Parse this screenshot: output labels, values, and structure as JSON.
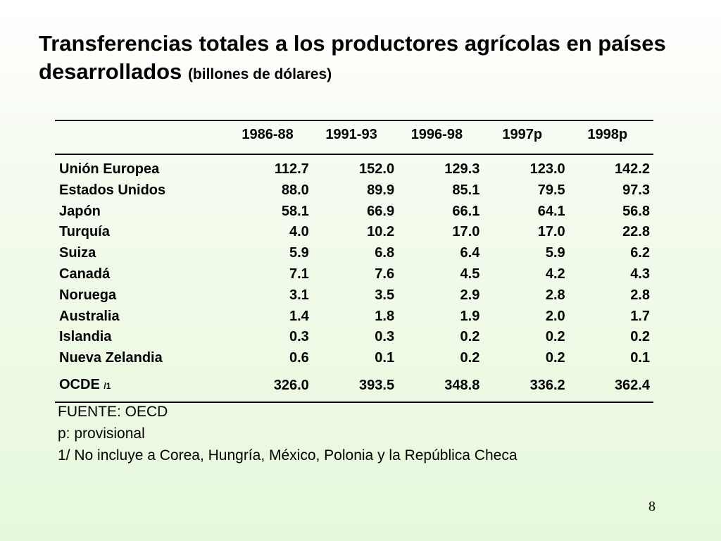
{
  "title": {
    "main": "Transferencias totales a los productores agrícolas en países desarrollados",
    "unit": "(billones de dólares)"
  },
  "table": {
    "headers": [
      "1986-88",
      "1991-93",
      "1996-98",
      "1997p",
      "1998p"
    ],
    "rows": [
      {
        "label": "Unión Europea",
        "values": [
          "112.7",
          "152.0",
          "129.3",
          "123.0",
          "142.2"
        ]
      },
      {
        "label": "Estados Unidos",
        "values": [
          "88.0",
          "89.9",
          "85.1",
          "79.5",
          "97.3"
        ]
      },
      {
        "label": "Japón",
        "values": [
          "58.1",
          "66.9",
          "66.1",
          "64.1",
          "56.8"
        ]
      },
      {
        "label": "Turquía",
        "values": [
          "4.0",
          "10.2",
          "17.0",
          "17.0",
          "22.8"
        ]
      },
      {
        "label": "Suiza",
        "values": [
          "5.9",
          "6.8",
          "6.4",
          "5.9",
          "6.2"
        ]
      },
      {
        "label": "Canadá",
        "values": [
          "7.1",
          "7.6",
          "4.5",
          "4.2",
          "4.3"
        ]
      },
      {
        "label": "Noruega",
        "values": [
          "3.1",
          "3.5",
          "2.9",
          "2.8",
          "2.8"
        ]
      },
      {
        "label": "Australia",
        "values": [
          "1.4",
          "1.8",
          "1.9",
          "2.0",
          "1.7"
        ]
      },
      {
        "label": "Islandia",
        "values": [
          "0.3",
          "0.3",
          "0.2",
          "0.2",
          "0.2"
        ]
      },
      {
        "label": "Nueva Zelandia",
        "values": [
          "0.6",
          "0.1",
          "0.2",
          "0.2",
          "0.1"
        ]
      }
    ],
    "total": {
      "label": "OCDE",
      "note": "/1",
      "values": [
        "326.0",
        "393.5",
        "348.8",
        "336.2",
        "362.4"
      ]
    }
  },
  "notes": [
    "FUENTE: OECD",
    "p: provisional",
    "1/ No incluye a Corea, Hungría, México, Polonia y la República Checa"
  ],
  "page_number": "8"
}
